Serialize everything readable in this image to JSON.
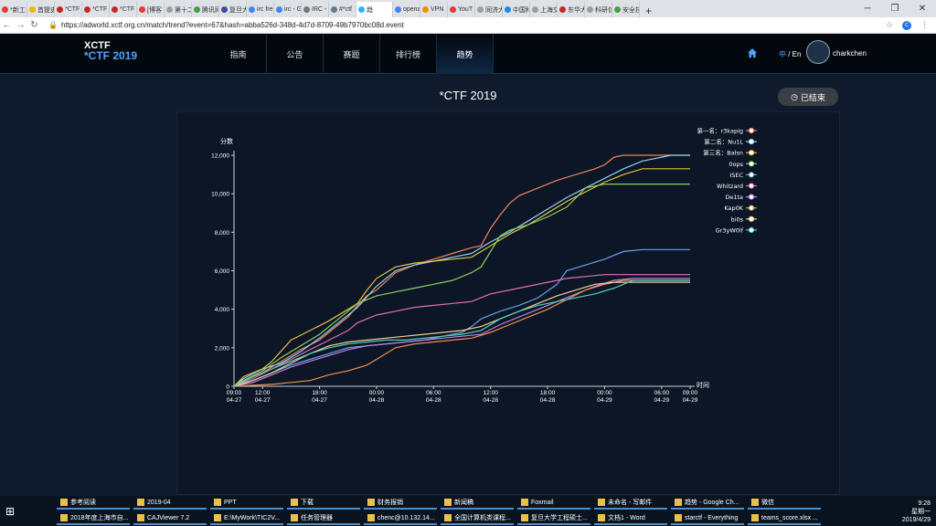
{
  "browser": {
    "tabs": [
      "*新工",
      "首提史",
      "*CTF",
      "*CTF",
      "*CTF",
      "[博客",
      "第十二",
      "腾讯网",
      "复旦大",
      "irc fre",
      "irc - G",
      "IRC -",
      "#*ctf",
      "趋",
      "opena",
      "VPN",
      "YouT",
      "同济大",
      "中国科",
      "上海交",
      "东华大",
      "科研信",
      "安全技"
    ],
    "active_tab": "趋",
    "url": "https://adworld.xctf.org.cn/match/trend?event=67&hash=abba526d-348d-4d7d-8709-49b7970bc08d.event",
    "account_initial": "C"
  },
  "site": {
    "logo_line1": "XCTF",
    "logo_line2": "*CTF 2019",
    "menu": [
      "指南",
      "公告",
      "赛题",
      "排行榜",
      "趋势"
    ],
    "lang_zh": "中",
    "lang_en": "/ En",
    "username": "charkchen"
  },
  "page": {
    "title": "*CTF 2019",
    "status": "已结束"
  },
  "chart_data": {
    "type": "line",
    "ylabel": "分数",
    "xlabel": "时间",
    "ylim": [
      0,
      12000
    ],
    "yticks": [
      "0",
      "2,000",
      "4,000",
      "6,000",
      "8,000",
      "10,000",
      "12,000"
    ],
    "xticks": [
      {
        "t": 0,
        "l1": "09:00",
        "l2": "04-27"
      },
      {
        "t": 3,
        "l1": "12:00",
        "l2": "04-27"
      },
      {
        "t": 9,
        "l1": "18:00",
        "l2": "04-27"
      },
      {
        "t": 15,
        "l1": "00:00",
        "l2": "04-28"
      },
      {
        "t": 21,
        "l1": "06:00",
        "l2": "04-28"
      },
      {
        "t": 27,
        "l1": "12:00",
        "l2": "04-28"
      },
      {
        "t": 33,
        "l1": "18:00",
        "l2": "04-28"
      },
      {
        "t": 39,
        "l1": "00:00",
        "l2": "04-29"
      },
      {
        "t": 45,
        "l1": "06:00",
        "l2": "04-29"
      },
      {
        "t": 48,
        "l1": "09:00",
        "l2": "04-29"
      }
    ],
    "series": [
      {
        "name": "第一名：r3kapig",
        "color": "#f0855a",
        "points": [
          [
            0,
            0
          ],
          [
            1,
            300
          ],
          [
            3,
            700
          ],
          [
            5,
            1300
          ],
          [
            7,
            1900
          ],
          [
            9,
            2400
          ],
          [
            11,
            3200
          ],
          [
            12,
            3600
          ],
          [
            13,
            4200
          ],
          [
            14,
            4700
          ],
          [
            15,
            5000
          ],
          [
            17,
            5900
          ],
          [
            19,
            6300
          ],
          [
            21,
            6600
          ],
          [
            23,
            6900
          ],
          [
            25,
            7200
          ],
          [
            26,
            7300
          ],
          [
            27,
            8200
          ],
          [
            28,
            8900
          ],
          [
            29,
            9500
          ],
          [
            30,
            9900
          ],
          [
            32,
            10300
          ],
          [
            34,
            10700
          ],
          [
            36,
            11000
          ],
          [
            38,
            11300
          ],
          [
            39,
            11500
          ],
          [
            40,
            11900
          ],
          [
            41,
            12000
          ],
          [
            48,
            12000
          ]
        ]
      },
      {
        "name": "第二名：Nu1L",
        "color": "#8fd0f0",
        "points": [
          [
            0,
            0
          ],
          [
            1,
            400
          ],
          [
            3,
            900
          ],
          [
            5,
            1200
          ],
          [
            7,
            1800
          ],
          [
            9,
            2500
          ],
          [
            11,
            3300
          ],
          [
            13,
            4100
          ],
          [
            15,
            5200
          ],
          [
            17,
            6000
          ],
          [
            19,
            6300
          ],
          [
            21,
            6500
          ],
          [
            23,
            6700
          ],
          [
            25,
            6900
          ],
          [
            27,
            7500
          ],
          [
            29,
            8000
          ],
          [
            31,
            8600
          ],
          [
            33,
            9200
          ],
          [
            35,
            9800
          ],
          [
            37,
            10300
          ],
          [
            39,
            10800
          ],
          [
            41,
            11300
          ],
          [
            43,
            11700
          ],
          [
            45,
            11900
          ],
          [
            46,
            12000
          ],
          [
            48,
            12000
          ]
        ]
      },
      {
        "name": "第三名：Balsn",
        "color": "#e8c040",
        "points": [
          [
            0,
            0
          ],
          [
            1,
            500
          ],
          [
            2,
            700
          ],
          [
            3,
            900
          ],
          [
            4,
            1300
          ],
          [
            6,
            2400
          ],
          [
            8,
            2900
          ],
          [
            10,
            3400
          ],
          [
            12,
            4000
          ],
          [
            13,
            4300
          ],
          [
            14,
            5000
          ],
          [
            15,
            5600
          ],
          [
            17,
            6200
          ],
          [
            19,
            6400
          ],
          [
            21,
            6500
          ],
          [
            23,
            6600
          ],
          [
            25,
            6700
          ],
          [
            27,
            7300
          ],
          [
            29,
            7900
          ],
          [
            31,
            8400
          ],
          [
            33,
            9000
          ],
          [
            35,
            9600
          ],
          [
            37,
            10100
          ],
          [
            39,
            10600
          ],
          [
            41,
            11000
          ],
          [
            43,
            11300
          ],
          [
            48,
            11300
          ]
        ]
      },
      {
        "name": "0ops",
        "color": "#90d060",
        "points": [
          [
            0,
            0
          ],
          [
            1,
            300
          ],
          [
            3,
            800
          ],
          [
            5,
            1500
          ],
          [
            7,
            2100
          ],
          [
            9,
            2700
          ],
          [
            11,
            3500
          ],
          [
            13,
            4300
          ],
          [
            15,
            4700
          ],
          [
            17,
            4900
          ],
          [
            19,
            5100
          ],
          [
            21,
            5300
          ],
          [
            23,
            5500
          ],
          [
            25,
            5900
          ],
          [
            26,
            6200
          ],
          [
            27,
            7000
          ],
          [
            28,
            7800
          ],
          [
            29,
            8100
          ],
          [
            31,
            8400
          ],
          [
            33,
            8800
          ],
          [
            35,
            9300
          ],
          [
            36,
            9800
          ],
          [
            37,
            10300
          ],
          [
            39,
            10500
          ],
          [
            48,
            10500
          ]
        ]
      },
      {
        "name": "ISEC",
        "color": "#6aa0e8",
        "points": [
          [
            0,
            0
          ],
          [
            2,
            300
          ],
          [
            4,
            700
          ],
          [
            6,
            1100
          ],
          [
            8,
            1400
          ],
          [
            10,
            1700
          ],
          [
            12,
            2000
          ],
          [
            14,
            2100
          ],
          [
            16,
            2200
          ],
          [
            18,
            2300
          ],
          [
            20,
            2400
          ],
          [
            22,
            2600
          ],
          [
            24,
            2800
          ],
          [
            25,
            3100
          ],
          [
            26,
            3500
          ],
          [
            28,
            3900
          ],
          [
            30,
            4200
          ],
          [
            32,
            4600
          ],
          [
            34,
            5300
          ],
          [
            35,
            6000
          ],
          [
            37,
            6300
          ],
          [
            39,
            6600
          ],
          [
            41,
            7000
          ],
          [
            43,
            7100
          ],
          [
            48,
            7100
          ]
        ]
      },
      {
        "name": "Whitzard",
        "color": "#e070b0",
        "points": [
          [
            0,
            0
          ],
          [
            2,
            400
          ],
          [
            4,
            900
          ],
          [
            6,
            1400
          ],
          [
            8,
            1900
          ],
          [
            10,
            2400
          ],
          [
            12,
            2900
          ],
          [
            13,
            3300
          ],
          [
            15,
            3700
          ],
          [
            17,
            3900
          ],
          [
            19,
            4100
          ],
          [
            21,
            4200
          ],
          [
            23,
            4300
          ],
          [
            25,
            4400
          ],
          [
            27,
            4800
          ],
          [
            29,
            5000
          ],
          [
            31,
            5200
          ],
          [
            33,
            5400
          ],
          [
            35,
            5600
          ],
          [
            37,
            5700
          ],
          [
            39,
            5800
          ],
          [
            41,
            5800
          ],
          [
            48,
            5800
          ]
        ]
      },
      {
        "name": "De1ta",
        "color": "#c080e0",
        "points": [
          [
            0,
            0
          ],
          [
            2,
            200
          ],
          [
            4,
            600
          ],
          [
            6,
            1000
          ],
          [
            8,
            1300
          ],
          [
            10,
            1600
          ],
          [
            12,
            1900
          ],
          [
            14,
            2100
          ],
          [
            16,
            2200
          ],
          [
            18,
            2300
          ],
          [
            20,
            2400
          ],
          [
            22,
            2500
          ],
          [
            24,
            2600
          ],
          [
            26,
            2700
          ],
          [
            28,
            3200
          ],
          [
            30,
            3600
          ],
          [
            32,
            4000
          ],
          [
            34,
            4400
          ],
          [
            36,
            4800
          ],
          [
            38,
            5200
          ],
          [
            40,
            5500
          ],
          [
            42,
            5600
          ],
          [
            48,
            5600
          ]
        ]
      },
      {
        "name": "Kap0K",
        "color": "#f09050",
        "points": [
          [
            0,
            0
          ],
          [
            4,
            100
          ],
          [
            6,
            200
          ],
          [
            8,
            300
          ],
          [
            10,
            600
          ],
          [
            12,
            800
          ],
          [
            14,
            1100
          ],
          [
            15,
            1400
          ],
          [
            17,
            2000
          ],
          [
            19,
            2200
          ],
          [
            21,
            2300
          ],
          [
            23,
            2400
          ],
          [
            25,
            2500
          ],
          [
            27,
            2800
          ],
          [
            29,
            3200
          ],
          [
            31,
            3600
          ],
          [
            33,
            4000
          ],
          [
            35,
            4500
          ],
          [
            37,
            5000
          ],
          [
            39,
            5300
          ],
          [
            41,
            5500
          ],
          [
            48,
            5500
          ]
        ]
      },
      {
        "name": "bi0s",
        "color": "#f0d090",
        "points": [
          [
            0,
            0
          ],
          [
            2,
            300
          ],
          [
            4,
            700
          ],
          [
            6,
            1200
          ],
          [
            8,
            1700
          ],
          [
            10,
            2100
          ],
          [
            12,
            2300
          ],
          [
            14,
            2400
          ],
          [
            16,
            2500
          ],
          [
            18,
            2600
          ],
          [
            20,
            2700
          ],
          [
            22,
            2800
          ],
          [
            24,
            2900
          ],
          [
            26,
            3100
          ],
          [
            28,
            3500
          ],
          [
            30,
            3900
          ],
          [
            32,
            4300
          ],
          [
            34,
            4700
          ],
          [
            36,
            5000
          ],
          [
            38,
            5300
          ],
          [
            40,
            5400
          ],
          [
            48,
            5400
          ]
        ]
      },
      {
        "name": "Gr3yW0lf",
        "color": "#50d0c0",
        "points": [
          [
            0,
            0
          ],
          [
            2,
            500
          ],
          [
            4,
            900
          ],
          [
            6,
            1300
          ],
          [
            8,
            1700
          ],
          [
            10,
            2000
          ],
          [
            12,
            2200
          ],
          [
            14,
            2300
          ],
          [
            16,
            2400
          ],
          [
            18,
            2400
          ],
          [
            20,
            2500
          ],
          [
            22,
            2600
          ],
          [
            24,
            2700
          ],
          [
            26,
            2900
          ],
          [
            28,
            3500
          ],
          [
            30,
            3900
          ],
          [
            32,
            4200
          ],
          [
            34,
            4400
          ],
          [
            36,
            4600
          ],
          [
            38,
            4800
          ],
          [
            40,
            5100
          ],
          [
            42,
            5500
          ],
          [
            48,
            5500
          ]
        ]
      }
    ]
  },
  "taskbar": {
    "row1": [
      "参考阅读",
      "2019-04",
      "PPT",
      "下载",
      "财务报销",
      "新闻稿",
      "Foxmail",
      "未命名 - 写邮件",
      "趋势 - Google Ch...",
      "微信"
    ],
    "row2": [
      "2018年度上海市自...",
      "CAJViewer 7.2",
      "E:\\MyWork\\TIC2V...",
      "任务管理器",
      "chenc@10.132.14...",
      "全国计算机类课程...",
      "复旦大学工程硕士...",
      "文档1 - Word",
      "starctf - Everything",
      "teams_score.xlsx ..."
    ],
    "time": "9:28",
    "weekday": "星期一",
    "date": "2019/4/29",
    "ime": "中"
  }
}
